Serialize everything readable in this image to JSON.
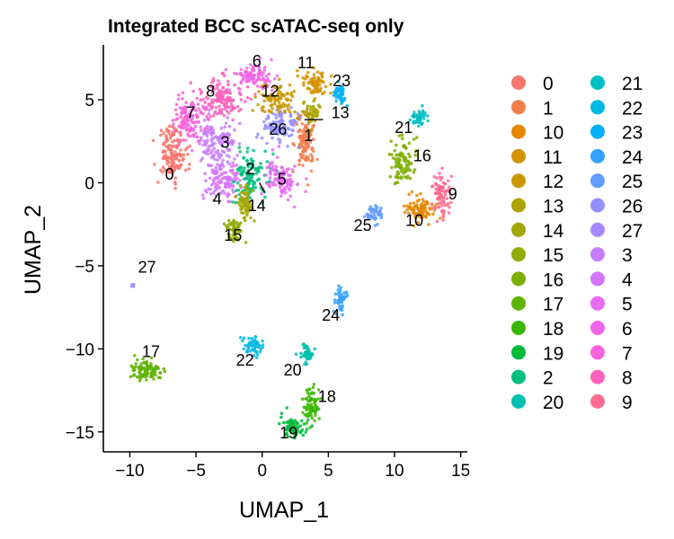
{
  "chart_data": {
    "type": "scatter",
    "title": "Integrated BCC scATAC-seq only",
    "xlabel": "UMAP_1",
    "ylabel": "UMAP_2",
    "xlim": [
      -12,
      15.5
    ],
    "ylim": [
      -16.2,
      8.3
    ],
    "x_ticks": [
      -10,
      -5,
      0,
      5,
      10,
      15
    ],
    "y_ticks": [
      5,
      0,
      -5,
      -10,
      -15
    ],
    "x_tick_labels": [
      "−10",
      "−5",
      "0",
      "5",
      "10",
      "15"
    ],
    "y_tick_labels": [
      "5",
      "0",
      "−5",
      "−10",
      "−15"
    ],
    "grid": false,
    "legend_position": "right",
    "legend_columns": 2,
    "legend": [
      "0",
      "1",
      "10",
      "11",
      "12",
      "13",
      "14",
      "15",
      "16",
      "17",
      "18",
      "19",
      "2",
      "20",
      "21",
      "22",
      "23",
      "24",
      "25",
      "26",
      "27",
      "3",
      "4",
      "5",
      "6",
      "7",
      "8",
      "9"
    ],
    "colors": {
      "0": "#F8766D",
      "1": "#F17E4D",
      "10": "#E58700",
      "11": "#D39200",
      "12": "#C99800",
      "13": "#AEA200",
      "14": "#A3A500",
      "15": "#8FAA00",
      "16": "#7CAE00",
      "17": "#5EB300",
      "18": "#39B600",
      "19": "#00BA38",
      "2": "#00BF7D",
      "20": "#00C0AF",
      "21": "#00BFC4",
      "22": "#00B9E3",
      "23": "#00B0F6",
      "24": "#35A2FF",
      "25": "#619CFF",
      "26": "#9590FF",
      "27": "#A58AFF",
      "3": "#C77CFF",
      "4": "#D575FE",
      "5": "#E76BF3",
      "6": "#F166E8",
      "7": "#FA62DB",
      "8": "#FF62BC",
      "9": "#FF6C91"
    },
    "series": [
      {
        "name": "0",
        "center": [
          -6.8,
          1.8
        ]
      },
      {
        "name": "1",
        "center": [
          3.2,
          2.4
        ]
      },
      {
        "name": "10",
        "center": [
          12.0,
          -1.6
        ]
      },
      {
        "name": "11",
        "center": [
          4.0,
          6.0
        ]
      },
      {
        "name": "12",
        "center": [
          1.1,
          5.0
        ]
      },
      {
        "name": "13",
        "center": [
          3.8,
          4.2
        ]
      },
      {
        "name": "14",
        "center": [
          -1.3,
          -1.2
        ]
      },
      {
        "name": "15",
        "center": [
          -2.1,
          -2.9
        ]
      },
      {
        "name": "16",
        "center": [
          10.6,
          1.1
        ]
      },
      {
        "name": "17",
        "center": [
          -8.6,
          -11.3
        ]
      },
      {
        "name": "18",
        "center": [
          3.7,
          -13.4
        ]
      },
      {
        "name": "19",
        "center": [
          2.4,
          -14.7
        ]
      },
      {
        "name": "2",
        "center": [
          -0.8,
          0.4
        ]
      },
      {
        "name": "20",
        "center": [
          3.4,
          -10.4
        ]
      },
      {
        "name": "21",
        "center": [
          11.9,
          3.9
        ]
      },
      {
        "name": "22",
        "center": [
          -0.6,
          -9.8
        ]
      },
      {
        "name": "23",
        "center": [
          5.9,
          5.3
        ]
      },
      {
        "name": "24",
        "center": [
          6.0,
          -7.0
        ]
      },
      {
        "name": "25",
        "center": [
          8.5,
          -1.9
        ]
      },
      {
        "name": "26",
        "center": [
          1.2,
          3.4
        ]
      },
      {
        "name": "27",
        "center": [
          -9.8,
          -6.2
        ]
      },
      {
        "name": "3",
        "center": [
          -3.5,
          2.5
        ]
      },
      {
        "name": "4",
        "center": [
          -2.9,
          0.2
        ]
      },
      {
        "name": "5",
        "center": [
          1.4,
          0.3
        ]
      },
      {
        "name": "6",
        "center": [
          -0.5,
          6.4
        ]
      },
      {
        "name": "7",
        "center": [
          -5.5,
          3.8
        ]
      },
      {
        "name": "8",
        "center": [
          -3.1,
          5.0
        ]
      },
      {
        "name": "9",
        "center": [
          13.5,
          -0.8
        ]
      }
    ],
    "cluster_labels": [
      {
        "text": "0",
        "x": -7.0,
        "y": 0.2
      },
      {
        "text": "1",
        "x": 3.5,
        "y": 2.5
      },
      {
        "text": "2",
        "x": -0.9,
        "y": 0.5
      },
      {
        "text": "3",
        "x": -2.8,
        "y": 2.1
      },
      {
        "text": "4",
        "x": -3.4,
        "y": -1.3
      },
      {
        "text": "5",
        "x": 1.5,
        "y": -0.1
      },
      {
        "text": "6",
        "x": -0.4,
        "y": 7.0
      },
      {
        "text": "7",
        "x": -5.4,
        "y": 3.9
      },
      {
        "text": "8",
        "x": -3.9,
        "y": 5.2
      },
      {
        "text": "9",
        "x": 14.4,
        "y": -1.0
      },
      {
        "text": "10",
        "x": 11.5,
        "y": -2.6
      },
      {
        "text": "11",
        "x": 3.3,
        "y": 6.9
      },
      {
        "text": "12",
        "x": 0.6,
        "y": 5.2
      },
      {
        "text": "13",
        "x": 5.9,
        "y": 3.9
      },
      {
        "text": "14",
        "x": -0.4,
        "y": -1.7
      },
      {
        "text": "15",
        "x": -2.2,
        "y": -3.5
      },
      {
        "text": "16",
        "x": 12.1,
        "y": 1.3
      },
      {
        "text": "17",
        "x": -8.4,
        "y": -10.5
      },
      {
        "text": "18",
        "x": 4.9,
        "y": -13.2
      },
      {
        "text": "19",
        "x": 2.0,
        "y": -15.4
      },
      {
        "text": "20",
        "x": 2.3,
        "y": -11.6
      },
      {
        "text": "21",
        "x": 10.7,
        "y": 3.0
      },
      {
        "text": "22",
        "x": -1.3,
        "y": -11.0
      },
      {
        "text": "23",
        "x": 6.0,
        "y": 5.8
      },
      {
        "text": "24",
        "x": 5.2,
        "y": -8.3
      },
      {
        "text": "25",
        "x": 7.6,
        "y": -2.9
      },
      {
        "text": "26",
        "x": 1.2,
        "y": 2.9
      },
      {
        "text": "27",
        "x": -8.7,
        "y": -5.4
      }
    ]
  }
}
